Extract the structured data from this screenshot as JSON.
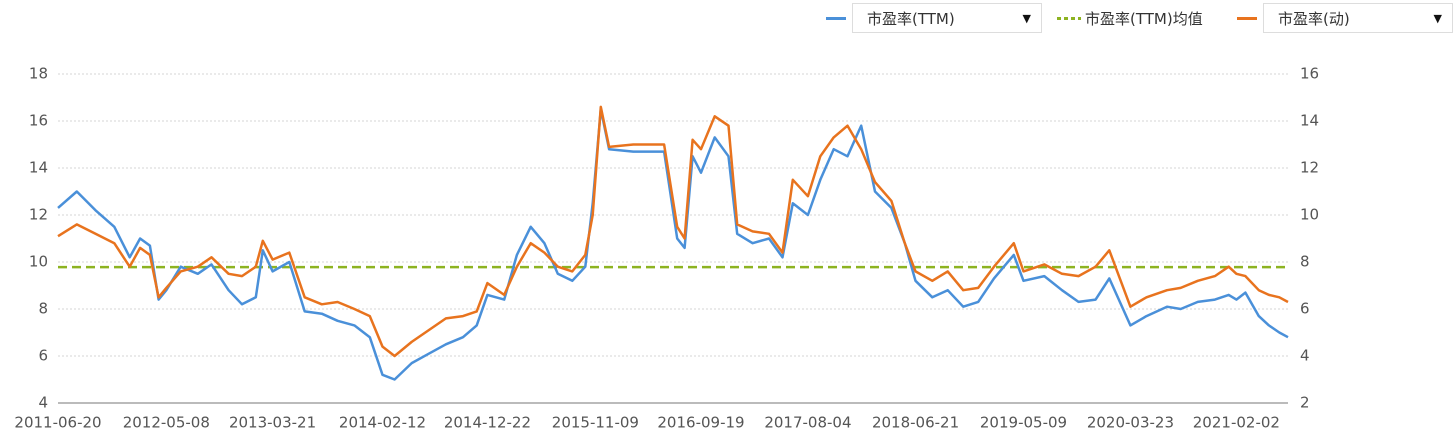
{
  "chart_data": {
    "type": "line",
    "x": [
      "2011-06-20",
      "2011-08-15",
      "2011-10-10",
      "2011-12-05",
      "2012-01-20",
      "2012-02-20",
      "2012-03-20",
      "2012-04-15",
      "2012-05-08",
      "2012-06-20",
      "2012-08-10",
      "2012-09-20",
      "2012-11-10",
      "2012-12-20",
      "2013-01-30",
      "2013-02-20",
      "2013-03-21",
      "2013-05-10",
      "2013-06-25",
      "2013-08-15",
      "2013-10-01",
      "2013-11-20",
      "2014-01-05",
      "2014-02-12",
      "2014-03-20",
      "2014-05-10",
      "2014-06-30",
      "2014-08-20",
      "2014-10-10",
      "2014-11-20",
      "2014-12-22",
      "2015-02-10",
      "2015-03-20",
      "2015-04-30",
      "2015-06-10",
      "2015-07-20",
      "2015-09-01",
      "2015-10-10",
      "2015-11-01",
      "2015-11-25",
      "2015-12-20",
      "2016-03-01",
      "2016-06-01",
      "2016-07-10",
      "2016-08-01",
      "2016-08-25",
      "2016-09-19",
      "2016-10-30",
      "2016-12-10",
      "2017-01-05",
      "2017-02-20",
      "2017-04-10",
      "2017-05-20",
      "2017-06-20",
      "2017-08-04",
      "2017-09-10",
      "2017-10-20",
      "2017-11-30",
      "2018-01-10",
      "2018-02-20",
      "2018-04-10",
      "2018-05-20",
      "2018-06-21",
      "2018-08-10",
      "2018-09-25",
      "2018-11-10",
      "2018-12-25",
      "2019-02-10",
      "2019-04-10",
      "2019-05-09",
      "2019-07-10",
      "2019-09-01",
      "2019-10-20",
      "2019-12-10",
      "2020-01-20",
      "2020-03-23",
      "2020-05-10",
      "2020-07-10",
      "2020-08-20",
      "2020-10-10",
      "2020-11-30",
      "2021-01-10",
      "2021-02-02",
      "2021-03-01",
      "2021-04-10",
      "2021-05-10",
      "2021-06-10",
      "2021-07-06"
    ],
    "series": [
      {
        "name": "市盈率(TTM)",
        "color": "#4a90d9",
        "values": [
          12.3,
          13.0,
          12.2,
          11.5,
          10.2,
          11.0,
          10.7,
          8.4,
          8.8,
          9.8,
          9.5,
          9.9,
          8.8,
          8.2,
          8.5,
          10.5,
          9.6,
          10.0,
          7.9,
          7.8,
          7.5,
          7.3,
          6.8,
          5.2,
          5.0,
          5.7,
          6.1,
          6.5,
          6.8,
          7.3,
          8.6,
          8.4,
          10.3,
          11.5,
          10.8,
          9.5,
          9.2,
          9.8,
          12.5,
          16.5,
          14.8,
          14.7,
          14.7,
          11.0,
          10.6,
          14.5,
          13.8,
          15.3,
          14.5,
          11.2,
          10.8,
          11.0,
          10.2,
          12.5,
          12.0,
          13.5,
          14.8,
          14.5,
          15.8,
          13.0,
          12.3,
          10.8,
          9.2,
          8.5,
          8.8,
          8.1,
          8.3,
          9.3,
          10.3,
          9.2,
          9.4,
          8.8,
          8.3,
          8.4,
          9.3,
          7.3,
          7.7,
          8.1,
          8.0,
          8.3,
          8.4,
          8.6,
          8.4,
          8.7,
          7.7,
          7.3,
          7.0,
          6.8
        ]
      },
      {
        "name": "市盈率(动)",
        "color": "#e8731e",
        "axis": "y2",
        "values": [
          9.1,
          9.6,
          9.2,
          8.8,
          7.8,
          8.6,
          8.3,
          6.5,
          6.9,
          7.6,
          7.8,
          8.2,
          7.5,
          7.4,
          7.8,
          8.9,
          8.1,
          8.4,
          6.5,
          6.2,
          6.3,
          6.0,
          5.7,
          4.4,
          4.0,
          4.6,
          5.1,
          5.6,
          5.7,
          5.9,
          7.1,
          6.6,
          7.8,
          8.8,
          8.4,
          7.8,
          7.6,
          8.3,
          10.0,
          14.6,
          12.9,
          13.0,
          13.0,
          9.5,
          9.0,
          13.2,
          12.8,
          14.2,
          13.8,
          9.6,
          9.3,
          9.2,
          8.4,
          11.5,
          10.8,
          12.5,
          13.3,
          13.8,
          12.8,
          11.4,
          10.6,
          8.8,
          7.6,
          7.2,
          7.6,
          6.8,
          6.9,
          7.8,
          8.8,
          7.6,
          7.9,
          7.5,
          7.4,
          7.8,
          8.5,
          6.1,
          6.5,
          6.8,
          6.9,
          7.2,
          7.4,
          7.8,
          7.5,
          7.4,
          6.8,
          6.6,
          6.5,
          6.3
        ]
      }
    ],
    "mean_line": {
      "name": "市盈率(TTM)均值",
      "color": "#8db321",
      "value": 9.78
    },
    "xlim": [
      "2011-06-20",
      "2021-07-06"
    ],
    "xticks": [
      "2011-06-20",
      "2012-05-08",
      "2013-03-21",
      "2014-02-12",
      "2014-12-22",
      "2015-11-09",
      "2016-09-19",
      "2017-08-04",
      "2018-06-21",
      "2019-05-09",
      "2020-03-23",
      "2021-02-02"
    ],
    "ylim": [
      4,
      18
    ],
    "yticks": [
      4,
      6,
      8,
      10,
      12,
      14,
      16,
      18
    ],
    "y2lim": [
      2,
      16
    ],
    "y2ticks": [
      2,
      4,
      6,
      8,
      10,
      12,
      14,
      16
    ],
    "grid": true
  }
}
